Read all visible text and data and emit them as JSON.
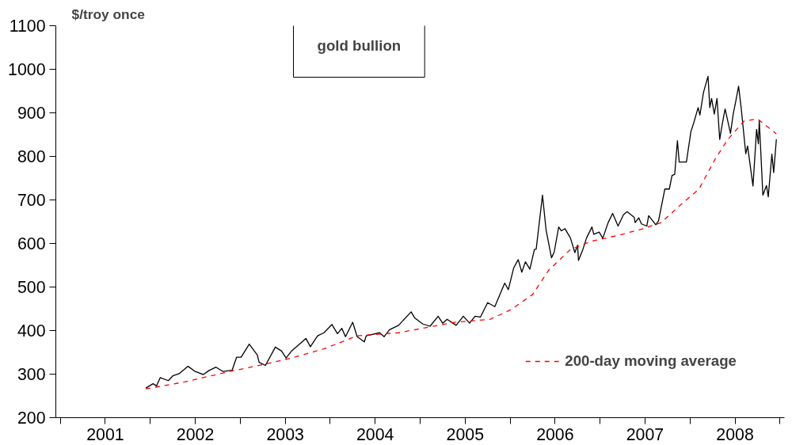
{
  "chart_data": {
    "type": "line",
    "title": "gold bullion",
    "ylabel": "$/troy once",
    "xlim": [
      2000.95,
      2009.05
    ],
    "ylim": [
      200,
      1100
    ],
    "xticks": [
      {
        "value": 2001,
        "label": null
      },
      {
        "value": 2001.5,
        "label": "2001"
      },
      {
        "value": 2002,
        "label": null
      },
      {
        "value": 2002.5,
        "label": "2002"
      },
      {
        "value": 2003,
        "label": null
      },
      {
        "value": 2003.5,
        "label": "2003"
      },
      {
        "value": 2004,
        "label": null
      },
      {
        "value": 2004.5,
        "label": "2004"
      },
      {
        "value": 2005,
        "label": null
      },
      {
        "value": 2005.5,
        "label": "2005"
      },
      {
        "value": 2006,
        "label": null
      },
      {
        "value": 2006.5,
        "label": "2006"
      },
      {
        "value": 2007,
        "label": null
      },
      {
        "value": 2007.5,
        "label": "2007"
      },
      {
        "value": 2008,
        "label": null
      },
      {
        "value": 2008.5,
        "label": "2008"
      },
      {
        "value": 2009,
        "label": null
      }
    ],
    "yticks": [
      200,
      300,
      400,
      500,
      600,
      700,
      800,
      900,
      1000,
      1100
    ],
    "grid": false,
    "legend": "bottom right",
    "marker": "none",
    "series": [
      {
        "color": "#000000",
        "line_style": "solid",
        "x": [
          2001.95,
          2002.03,
          2002.07,
          2002.11,
          2002.2,
          2002.25,
          2002.32,
          2002.42,
          2002.5,
          2002.59,
          2002.65,
          2002.73,
          2002.81,
          2002.91,
          2002.96,
          2003.01,
          2003.1,
          2003.19,
          2003.21,
          2003.28,
          2003.39,
          2003.46,
          2003.51,
          2003.57,
          2003.66,
          2003.73,
          2003.78,
          2003.86,
          2003.93,
          2004.02,
          2004.08,
          2004.13,
          2004.17,
          2004.25,
          2004.3,
          2004.38,
          2004.4,
          2004.55,
          2004.6,
          2004.66,
          2004.76,
          2004.9,
          2004.94,
          2005.03,
          2005.11,
          2005.2,
          2005.25,
          2005.3,
          2005.4,
          2005.48,
          2005.55,
          2005.61,
          2005.67,
          2005.75,
          2005.83,
          2005.94,
          2005.98,
          2006.04,
          2006.09,
          2006.13,
          2006.17,
          2006.22,
          2006.27,
          2006.29,
          2006.36,
          2006.4,
          2006.46,
          2006.49,
          2006.54,
          2006.57,
          2006.61,
          2006.67,
          2006.72,
          2006.75,
          2006.76,
          2006.81,
          2006.85,
          2006.91,
          2006.93,
          2006.99,
          2007.03,
          2007.09,
          2007.14,
          2007.2,
          2007.26,
          2007.3,
          2007.38,
          2007.39,
          2007.43,
          2007.46,
          2007.52,
          2007.54,
          2007.62,
          2007.65,
          2007.72,
          2007.77,
          2007.8,
          2007.83,
          2007.86,
          2007.88,
          2007.96,
          2008.01,
          2008.04,
          2008.09,
          2008.11,
          2008.15,
          2008.2,
          2008.22,
          2008.24,
          2008.27,
          2008.3,
          2008.33,
          2008.36,
          2008.39,
          2008.45,
          2008.48,
          2008.51,
          2008.54,
          2008.57,
          2008.62,
          2008.64,
          2008.7,
          2008.74,
          2008.76,
          2008.77,
          2008.81,
          2008.85,
          2008.87,
          2008.91,
          2008.93,
          2008.96
        ],
        "values": [
          268,
          278,
          273,
          292,
          285,
          296,
          301,
          318,
          306,
          299,
          308,
          316,
          306,
          309,
          339,
          339,
          369,
          344,
          327,
          320,
          362,
          353,
          337,
          353,
          369,
          382,
          363,
          388,
          395,
          414,
          393,
          405,
          386,
          419,
          386,
          374,
          388,
          395,
          386,
          402,
          412,
          443,
          429,
          415,
          410,
          433,
          417,
          426,
          412,
          433,
          417,
          433,
          431,
          464,
          455,
          509,
          494,
          544,
          563,
          534,
          558,
          541,
          586,
          587,
          711,
          631,
          567,
          580,
          638,
          629,
          634,
          613,
          579,
          596,
          561,
          587,
          613,
          638,
          621,
          626,
          612,
          648,
          669,
          640,
          666,
          673,
          660,
          648,
          659,
          645,
          640,
          664,
          643,
          652,
          725,
          725,
          756,
          759,
          836,
          787,
          787,
          857,
          876,
          912,
          895,
          947,
          984,
          912,
          933,
          897,
          933,
          839,
          876,
          909,
          853,
          897,
          928,
          961,
          909,
          806,
          824,
          732,
          862,
          829,
          883,
          711,
          733,
          707,
          805,
          763,
          839
        ]
      },
      {
        "name": "200-day moving average",
        "color": "#ff0000",
        "line_style": "dashed",
        "x": [
          2001.95,
          2002.38,
          2002.88,
          2003.28,
          2003.57,
          2003.93,
          2004.3,
          2004.76,
          2005.38,
          2005.78,
          2006.01,
          2006.25,
          2006.43,
          2006.67,
          2006.9,
          2007.21,
          2007.48,
          2007.68,
          2007.88,
          2008.1,
          2008.28,
          2008.42,
          2008.6,
          2008.75,
          2008.96
        ],
        "values": [
          266,
          282,
          306,
          323,
          337,
          358,
          388,
          395,
          419,
          426,
          448,
          483,
          539,
          586,
          605,
          619,
          634,
          648,
          686,
          725,
          794,
          839,
          881,
          886,
          852
        ]
      }
    ]
  }
}
